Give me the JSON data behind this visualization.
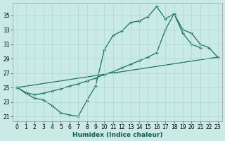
{
  "xlabel": "Humidex (Indice chaleur)",
  "bg_color": "#caeae6",
  "grid_color": "#aad8d3",
  "line_color": "#1a7060",
  "xlim": [
    -0.5,
    23.5
  ],
  "ylim": [
    20.3,
    36.7
  ],
  "yticks": [
    21,
    23,
    25,
    27,
    29,
    31,
    33,
    35
  ],
  "xticks": [
    0,
    1,
    2,
    3,
    4,
    5,
    6,
    7,
    8,
    9,
    10,
    11,
    12,
    13,
    14,
    15,
    16,
    17,
    18,
    19,
    20,
    21,
    22,
    23
  ],
  "line1_x": [
    0,
    1,
    2,
    3,
    4,
    5,
    6,
    7,
    8,
    9,
    10,
    11,
    12,
    13,
    14,
    15,
    16,
    17,
    18,
    19,
    20,
    21
  ],
  "line1_y": [
    25.0,
    24.2,
    23.5,
    23.3,
    22.5,
    21.5,
    21.2,
    21.0,
    23.2,
    25.2,
    30.2,
    32.2,
    32.8,
    34.0,
    34.2,
    34.8,
    36.2,
    34.5,
    35.2,
    32.5,
    31.0,
    30.5
  ],
  "line2_x": [
    0,
    1,
    2,
    3,
    4,
    5,
    6,
    7,
    8,
    9,
    10,
    11,
    12,
    13,
    14,
    15,
    16,
    17,
    18,
    19,
    20,
    21,
    22,
    23
  ],
  "line2_y": [
    25.0,
    24.3,
    24.0,
    24.2,
    24.5,
    24.8,
    25.2,
    25.5,
    25.9,
    26.3,
    26.8,
    27.2,
    27.7,
    28.2,
    28.7,
    29.2,
    29.8,
    33.0,
    35.2,
    33.0,
    32.5,
    31.0,
    30.5,
    29.2
  ],
  "line3_x": [
    0,
    23
  ],
  "line3_y": [
    25.0,
    29.2
  ]
}
